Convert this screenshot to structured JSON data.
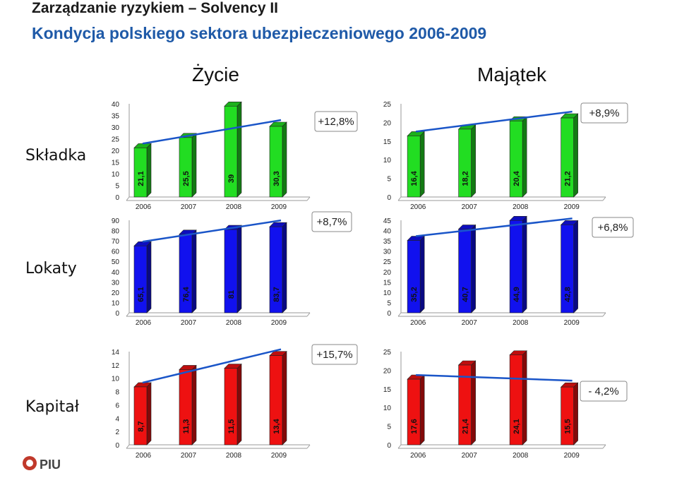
{
  "header": {
    "title": "Zarządzanie ryzykiem – Solvency II",
    "subtitle": "Kondycja polskiego sektora ubezpieczeniowego 2006-2009"
  },
  "columns": {
    "left": "Życie",
    "right": "Majątek"
  },
  "rows": {
    "r1": "Składka",
    "r2": "Lokaty",
    "r3": "Kapitał"
  },
  "logo": {
    "text": "PIU"
  },
  "colors": {
    "green": "#22dd22",
    "blue": "#1111ee",
    "red": "#ee1111",
    "trend": "#1a55c8"
  },
  "chart_data": [
    {
      "id": "zycie-skladka",
      "type": "bar",
      "color": "green",
      "categories": [
        "2006",
        "2007",
        "2008",
        "2009"
      ],
      "values": [
        21.1,
        25.5,
        39,
        30.3
      ],
      "labels": [
        "21,1",
        "25,5",
        "39",
        "30,3"
      ],
      "ylim": [
        0,
        40
      ],
      "yticks": [
        0,
        5,
        10,
        15,
        20,
        25,
        30,
        35,
        40
      ],
      "change": "+12,8%"
    },
    {
      "id": "majatek-skladka",
      "type": "bar",
      "color": "green",
      "categories": [
        "2006",
        "2007",
        "2008",
        "2009"
      ],
      "values": [
        16.4,
        18.2,
        20.4,
        21.2
      ],
      "labels": [
        "16,4",
        "18,2",
        "20,4",
        "21,2"
      ],
      "ylim": [
        0,
        25
      ],
      "yticks": [
        0,
        5,
        10,
        15,
        20,
        25
      ],
      "change": "+8,9%"
    },
    {
      "id": "zycie-lokaty",
      "type": "bar",
      "color": "blue",
      "categories": [
        "2006",
        "2007",
        "2008",
        "2009"
      ],
      "values": [
        65.1,
        76.4,
        81,
        83.7
      ],
      "labels": [
        "65,1",
        "76,4",
        "81",
        "83,7"
      ],
      "ylim": [
        0,
        90
      ],
      "yticks": [
        0,
        10,
        20,
        30,
        40,
        50,
        60,
        70,
        80,
        90
      ],
      "change": "+8,7%"
    },
    {
      "id": "majatek-lokaty",
      "type": "bar",
      "color": "blue",
      "categories": [
        "2006",
        "2007",
        "2008",
        "2009"
      ],
      "values": [
        35.2,
        40.7,
        44.9,
        42.8
      ],
      "labels": [
        "35,2",
        "40,7",
        "44,9",
        "42,8"
      ],
      "ylim": [
        0,
        45
      ],
      "yticks": [
        0,
        5,
        10,
        15,
        20,
        25,
        30,
        35,
        40,
        45
      ],
      "change": "+6,8%"
    },
    {
      "id": "zycie-kapital",
      "type": "bar",
      "color": "red",
      "categories": [
        "2006",
        "2007",
        "2008",
        "2009"
      ],
      "values": [
        8.7,
        11.3,
        11.5,
        13.4
      ],
      "labels": [
        "8,7",
        "11,3",
        "11,5",
        "13,4"
      ],
      "ylim": [
        0,
        14
      ],
      "yticks": [
        0,
        2,
        4,
        6,
        8,
        10,
        12,
        14
      ],
      "change": "+15,7%"
    },
    {
      "id": "majatek-kapital",
      "type": "bar",
      "color": "red",
      "categories": [
        "2006",
        "2007",
        "2008",
        "2009"
      ],
      "values": [
        17.6,
        21.4,
        24.1,
        15.5
      ],
      "labels": [
        "17,6",
        "21,4",
        "24,1",
        "15,5"
      ],
      "ylim": [
        0,
        25
      ],
      "yticks": [
        0,
        5,
        10,
        15,
        20,
        25
      ],
      "change": "- 4,2%"
    }
  ]
}
